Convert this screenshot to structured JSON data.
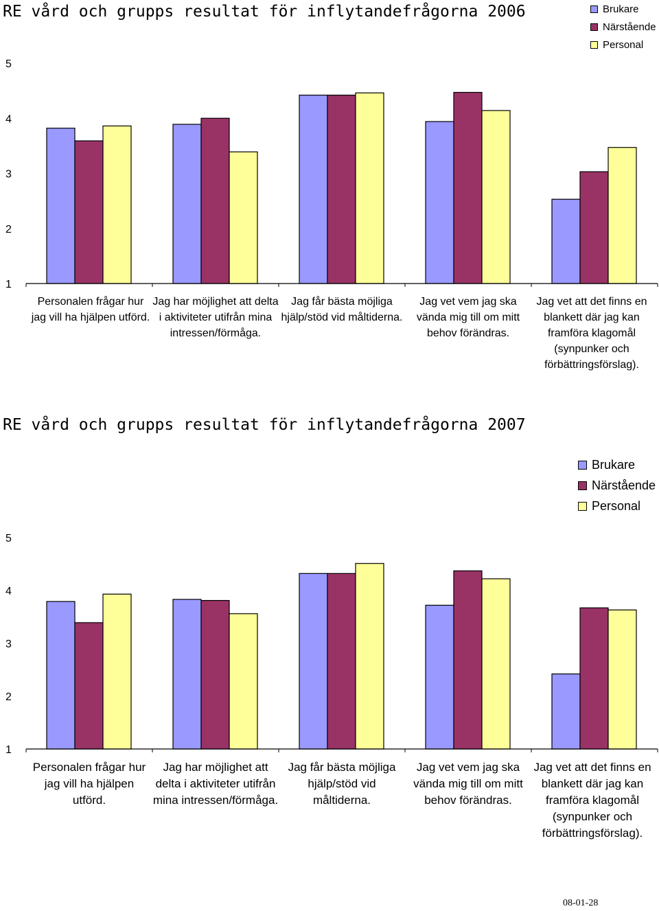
{
  "chart_data": [
    {
      "type": "bar",
      "title": "RE vård och grupps resultat för inflytandefrågorna 2006",
      "categories": [
        "Personalen frågar hur jag vill ha hjälpen utförd.",
        "Jag har möjlighet att delta i aktiviteter utifrån mina intressen/förmåga.",
        "Jag får bästa möjliga hjälp/stöd vid måltiderna.",
        "Jag vet vem jag ska vända mig till om mitt behov förändras.",
        "Jag vet att det finns en blankett där jag kan framföra klagomål (synpunker och förbättringsförslag)."
      ],
      "series": [
        {
          "name": "Brukare",
          "color": "#9999ff",
          "values": [
            3.82,
            3.89,
            4.42,
            3.94,
            2.53
          ]
        },
        {
          "name": "Närstående",
          "color": "#993366",
          "values": [
            3.59,
            4.0,
            4.42,
            4.47,
            3.03
          ]
        },
        {
          "name": "Personal",
          "color": "#ffff99",
          "values": [
            3.86,
            3.39,
            4.46,
            4.14,
            3.47
          ]
        }
      ],
      "ylim": [
        1,
        5
      ],
      "yticks": [
        "1",
        "2",
        "3",
        "4",
        "5"
      ],
      "legend": "top-right",
      "grid": false
    },
    {
      "type": "bar",
      "title": "RE vård och grupps resultat för inflytandefrågorna 2007",
      "categories": [
        "Personalen frågar hur jag vill ha hjälpen utförd.",
        "Jag har möjlighet att delta i aktiviteter utifrån mina intressen/förmåga.",
        "Jag får bästa möjliga hjälp/stöd vid måltiderna.",
        "Jag vet vem jag ska vända mig till om mitt behov förändras.",
        "Jag vet att det finns en blankett där jag kan framföra klagomål (synpunker och förbättringsförslag)."
      ],
      "series": [
        {
          "name": "Brukare",
          "color": "#9999ff",
          "values": [
            3.79,
            3.83,
            4.32,
            3.72,
            2.42
          ]
        },
        {
          "name": "Närstående",
          "color": "#993366",
          "values": [
            3.39,
            3.81,
            4.32,
            4.37,
            3.67
          ]
        },
        {
          "name": "Personal",
          "color": "#ffff99",
          "values": [
            3.93,
            3.56,
            4.51,
            4.22,
            3.63
          ]
        }
      ],
      "ylim": [
        1,
        5
      ],
      "yticks": [
        "1",
        "2",
        "3",
        "4",
        "5"
      ],
      "legend": "top-right",
      "grid": false
    }
  ],
  "footer": {
    "date": "08-01-28"
  }
}
